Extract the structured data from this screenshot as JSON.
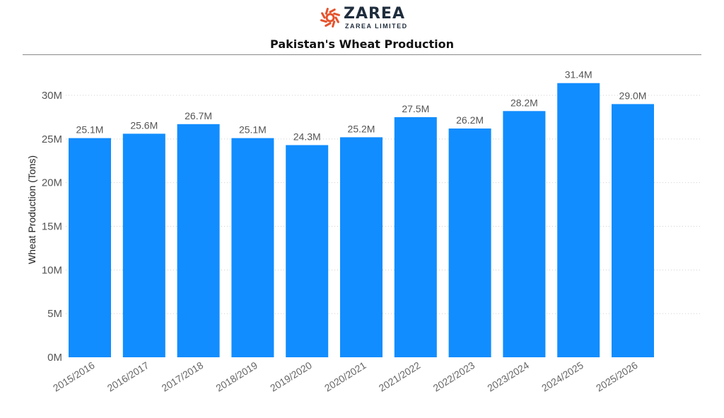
{
  "brand": {
    "name": "ZAREA",
    "tagline": "ZAREA LIMITED",
    "logo_color": "#e5532d"
  },
  "chart_data": {
    "type": "bar",
    "title": "Pakistan's Wheat Production",
    "xlabel": "",
    "ylabel": "Wheat Production (Tons)",
    "categories": [
      "2015/2016",
      "2016/2017",
      "2017/2018",
      "2018/2019",
      "2019/2020",
      "2020/2021",
      "2021/2022",
      "2022/2023",
      "2023/2024",
      "2024/2025",
      "2025/2026"
    ],
    "values": [
      25.1,
      25.6,
      26.7,
      25.1,
      24.3,
      25.2,
      27.5,
      26.2,
      28.2,
      31.4,
      29.0
    ],
    "data_labels": [
      "25.1M",
      "25.6M",
      "26.7M",
      "25.1M",
      "24.3M",
      "25.2M",
      "27.5M",
      "26.2M",
      "28.2M",
      "31.4M",
      "29.0M"
    ],
    "unit": "M",
    "yticks": [
      0,
      5,
      10,
      15,
      20,
      25,
      30
    ],
    "ytick_labels": [
      "0M",
      "5M",
      "10M",
      "15M",
      "20M",
      "25M",
      "30M"
    ],
    "ylim": [
      0,
      30
    ],
    "grid": true,
    "bar_color": "#118dff",
    "legend": "none"
  }
}
